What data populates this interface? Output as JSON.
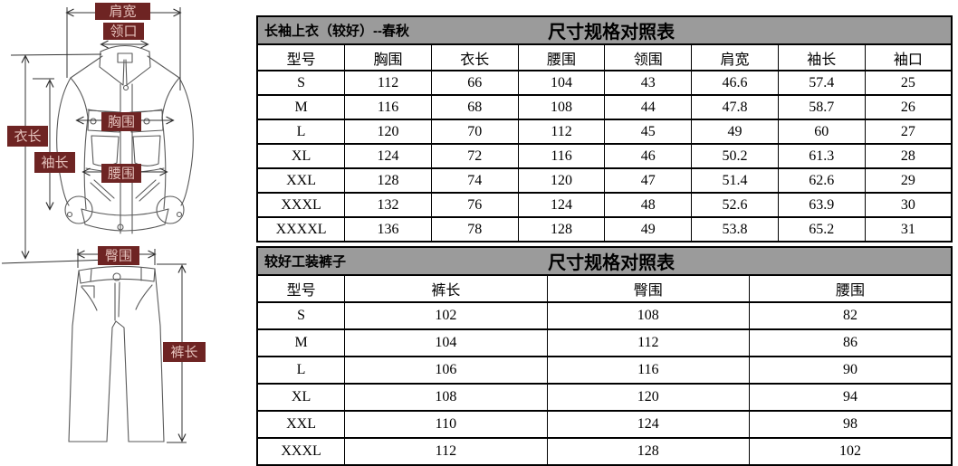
{
  "diagram": {
    "labels": {
      "shoulder_width": "肩宽",
      "collar": "领口",
      "jacket_length": "衣长",
      "sleeve_length": "袖长",
      "chest": "胸围",
      "waist": "腰围",
      "hip": "臀围",
      "pants_length": "裤长"
    }
  },
  "tables": [
    {
      "title_left": "长袖上衣（较好）--春秋",
      "title_center": "尺寸规格对照表",
      "columns": [
        "型号",
        "胸围",
        "衣长",
        "腰围",
        "领围",
        "肩宽",
        "袖长",
        "袖口"
      ],
      "rows": [
        [
          "S",
          "112",
          "66",
          "104",
          "43",
          "46.6",
          "57.4",
          "25"
        ],
        [
          "M",
          "116",
          "68",
          "108",
          "44",
          "47.8",
          "58.7",
          "26"
        ],
        [
          "L",
          "120",
          "70",
          "112",
          "45",
          "49",
          "60",
          "27"
        ],
        [
          "XL",
          "124",
          "72",
          "116",
          "46",
          "50.2",
          "61.3",
          "28"
        ],
        [
          "XXL",
          "128",
          "74",
          "120",
          "47",
          "51.4",
          "62.6",
          "29"
        ],
        [
          "XXXL",
          "132",
          "76",
          "124",
          "48",
          "52.6",
          "63.9",
          "30"
        ],
        [
          "XXXXL",
          "136",
          "78",
          "128",
          "49",
          "53.8",
          "65.2",
          "31"
        ]
      ]
    },
    {
      "title_left": "较好工装裤子",
      "title_center": "尺寸规格对照表",
      "columns": [
        "型号",
        "裤长",
        "臀围",
        "腰围"
      ],
      "rows": [
        [
          "S",
          "102",
          "108",
          "82"
        ],
        [
          "M",
          "104",
          "112",
          "86"
        ],
        [
          "L",
          "106",
          "116",
          "90"
        ],
        [
          "XL",
          "108",
          "120",
          "94"
        ],
        [
          "XXL",
          "110",
          "124",
          "98"
        ],
        [
          "XXXL",
          "112",
          "128",
          "102"
        ]
      ]
    }
  ],
  "colors": {
    "band_bg": "#9b9b9b",
    "table_border": "#000000",
    "label_box_bg": "#6e2423",
    "label_text": "#e5c2bc",
    "garment_line": "#5a5a5a",
    "arrow_line": "#333333"
  }
}
